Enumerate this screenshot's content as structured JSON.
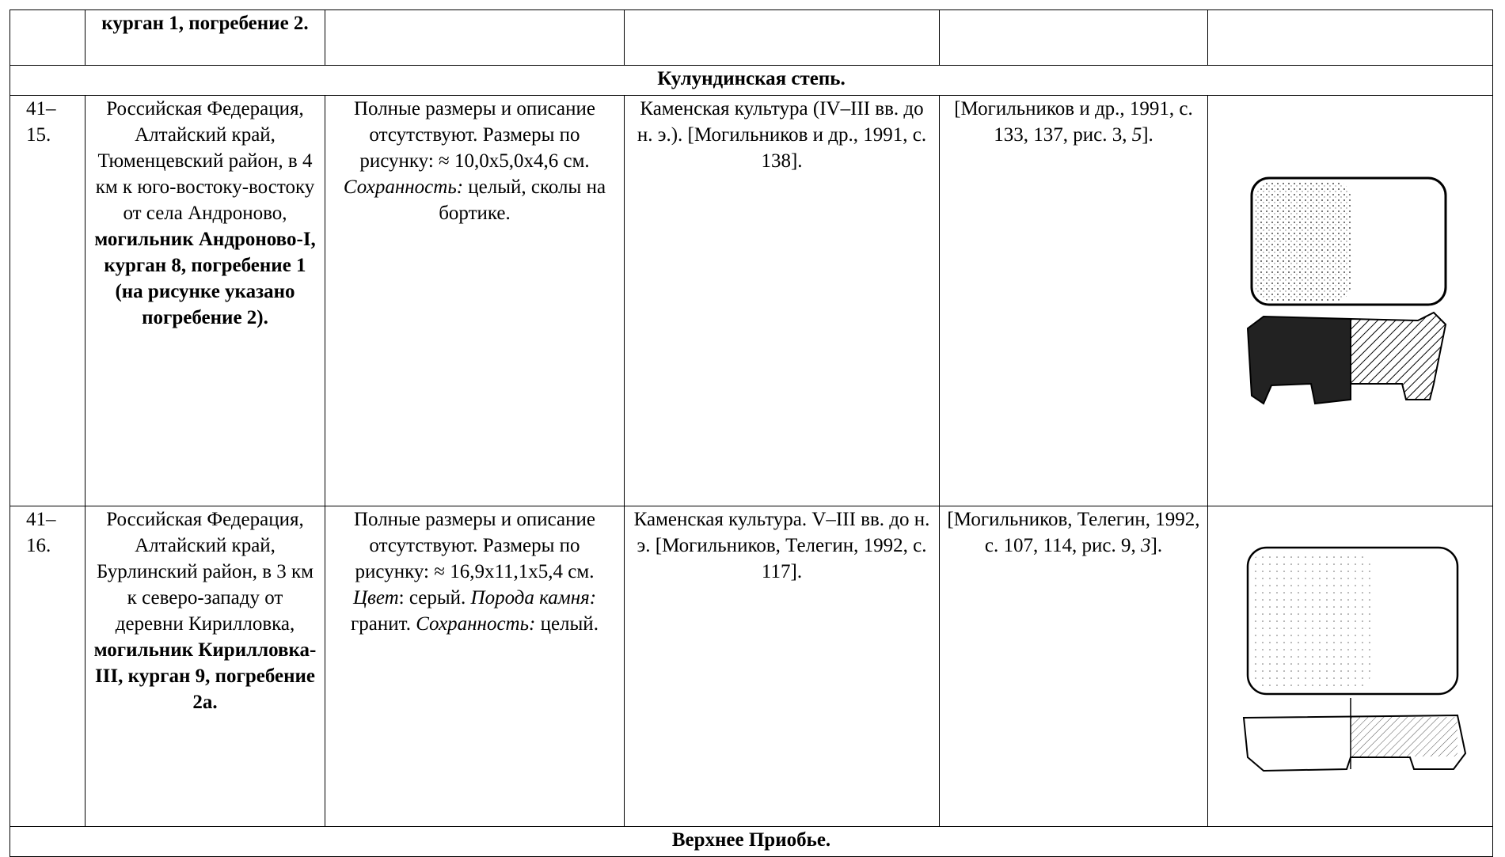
{
  "top_row": {
    "location_bold": "курган 1, погребение 2."
  },
  "sections": [
    "Кулундинская степь.",
    "Верхнее Приобье."
  ],
  "entries": [
    {
      "number": "41–15.",
      "location": {
        "text": "Российская Федерация, Алтайский край, Тюменцевский район, в 4 км к юго-востоку-востоку от села Андроново,",
        "bold": "могильник Андроново-I, курган 8, погребение 1 (на рисунке указано погребение 2)."
      },
      "description": [
        {
          "text": "Полные размеры и описание отсутствуют."
        },
        {
          "text": "Размеры по рисунку: ≈ 10,0x5,0x4,6 см."
        },
        {
          "label": "Сохранность:",
          "text": "целый, сколы на бортике."
        }
      ],
      "culture": "Каменская культура (IV–III вв. до н. э.). [Могильников и др., 1991, с. 138].",
      "reference": {
        "text": "[Могильников и др., 1991, с. 133, 137, рис. 3,",
        "italic": "5",
        "end": "]."
      }
    },
    {
      "number": "41–16.",
      "location": {
        "text": "Российская Федерация, Алтайский край, Бурлинский район, в 3 км к северо-западу от деревни Кирилловка,",
        "bold": "могильник Кирилловка-III, курган 9, погребение 2а."
      },
      "description": [
        {
          "text": "Полные размеры и описание отсутствуют."
        },
        {
          "text": "Размеры по рисунку: ≈ 16,9x11,1x5,4 см."
        },
        {
          "label": "Цвет",
          "text": ": серый."
        },
        {
          "label": "Порода камня:",
          "text": "гранит."
        },
        {
          "label": "Сохранность:",
          "text": "целый."
        }
      ],
      "culture": "Каменская культура. V–III вв. до н. э. [Могильников, Телегин, 1992, с. 117].",
      "reference": {
        "text": "[Могильников, Телегин, 1992, с. 107, 114, рис. 9,",
        "italic": "3",
        "end": "]."
      }
    }
  ]
}
